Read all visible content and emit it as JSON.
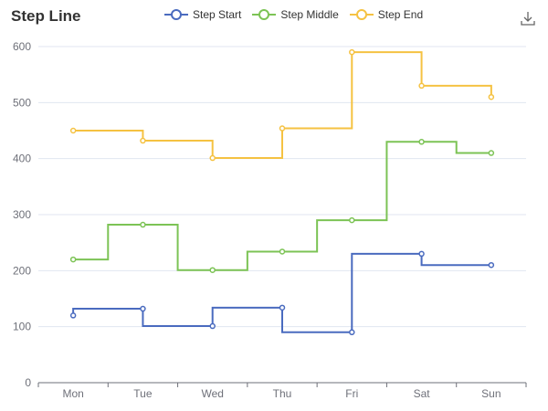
{
  "title": "Step Line",
  "toolbox": {
    "icon": "download-icon"
  },
  "chart_data": {
    "type": "line",
    "step": true,
    "categories": [
      "Mon",
      "Tue",
      "Wed",
      "Thu",
      "Fri",
      "Sat",
      "Sun"
    ],
    "ylim": [
      0,
      600
    ],
    "yticks": [
      0,
      100,
      200,
      300,
      400,
      500,
      600
    ],
    "grid": true,
    "legend_position": "top-center",
    "series": [
      {
        "name": "Step Start",
        "step": "start",
        "color": "#4a6bbf",
        "values": [
          120,
          132,
          101,
          134,
          90,
          230,
          210
        ]
      },
      {
        "name": "Step Middle",
        "step": "middle",
        "color": "#7cc355",
        "values": [
          220,
          282,
          201,
          234,
          290,
          430,
          410
        ]
      },
      {
        "name": "Step End",
        "step": "end",
        "color": "#f5c242",
        "values": [
          450,
          432,
          401,
          454,
          590,
          530,
          510
        ]
      }
    ]
  }
}
